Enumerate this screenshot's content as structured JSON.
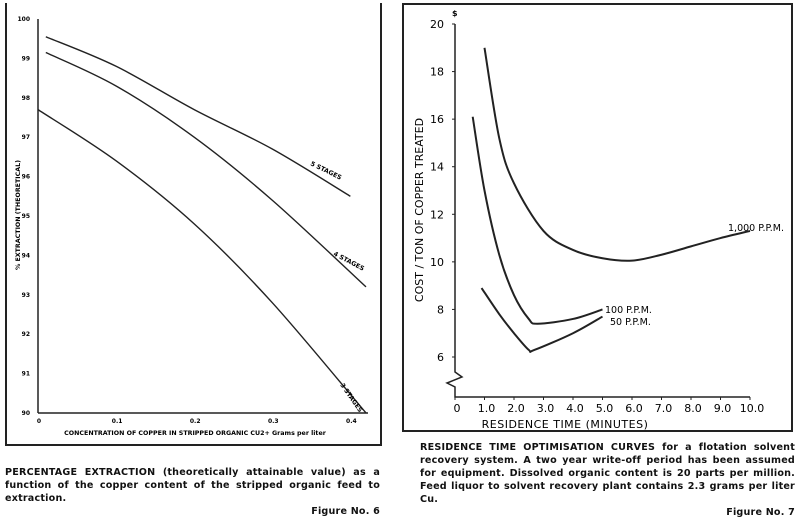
{
  "chart_data": [
    {
      "type": "line",
      "xlabel": "CONCENTRATION OF COPPER IN STRIPPED ORGANIC  CU2+ Grams per liter",
      "ylabel": "% EXTRACTION (THEORETICAL)",
      "xlim": [
        0,
        0.42
      ],
      "ylim": [
        90,
        100
      ],
      "xticks": [
        "0",
        "0.1",
        "0.2",
        "0.3",
        "0.4"
      ],
      "xtick_values": [
        0,
        0.1,
        0.2,
        0.3,
        0.4
      ],
      "yticks": [
        "90",
        "91",
        "92",
        "93",
        "94",
        "95",
        "96",
        "97",
        "98",
        "99",
        "100"
      ],
      "grid": false,
      "series": [
        {
          "name": "5 STAGES",
          "x": [
            0.01,
            0.1,
            0.2,
            0.3,
            0.4
          ],
          "y": [
            99.55,
            98.8,
            97.7,
            96.7,
            95.5
          ]
        },
        {
          "name": "4 STAGES",
          "x": [
            0.01,
            0.1,
            0.2,
            0.3,
            0.42
          ],
          "y": [
            99.15,
            98.3,
            97.0,
            95.4,
            93.2
          ]
        },
        {
          "name": "3 STAGES",
          "x": [
            0,
            0.1,
            0.2,
            0.3,
            0.42
          ],
          "y": [
            97.7,
            96.4,
            94.8,
            92.8,
            90.0
          ]
        }
      ],
      "caption_bold": "PERCENTAGE EXTRACTION",
      "caption": " (theoretically attainable value) as a function of the copper content of the stripped organic feed to extraction.",
      "figure_label": "Figure No. 6"
    },
    {
      "type": "line",
      "xlabel": "RESIDENCE TIME (MINUTES)",
      "ylabel": "COST / TON OF COPPER TREATED",
      "yunit": "$",
      "xlim": [
        0,
        10
      ],
      "ylim": [
        4,
        20
      ],
      "y_axis_break": true,
      "xticks": [
        "0",
        "1.0",
        "2.0",
        "3.0",
        "4.0",
        "5.0",
        "6.0",
        "7.0",
        "8.0",
        "9.0",
        "10.0"
      ],
      "yticks": [
        "6",
        "8",
        "10",
        "12",
        "14",
        "16",
        "18",
        "20"
      ],
      "grid": false,
      "series": [
        {
          "name": "1,000 P.P.M.",
          "x": [
            1.0,
            1.5,
            2.0,
            3.0,
            4.0,
            5.0,
            6.0,
            7.0,
            8.0,
            9.0,
            10.0
          ],
          "y": [
            19.0,
            15.2,
            13.3,
            11.3,
            10.5,
            10.15,
            10.05,
            10.3,
            10.65,
            11.0,
            11.3
          ]
        },
        {
          "name": "100 P.P.M.",
          "x": [
            0.6,
            1.0,
            1.5,
            2.0,
            2.5,
            2.8,
            4.0,
            5.0
          ],
          "y": [
            16.1,
            13.0,
            10.3,
            8.6,
            7.6,
            7.4,
            7.6,
            8.0
          ]
        },
        {
          "name": "50 P.P.M.",
          "x": [
            0.9,
            1.5,
            2.0,
            2.5,
            2.7,
            4.0,
            5.0
          ],
          "y": [
            8.9,
            7.8,
            7.0,
            6.3,
            6.3,
            7.0,
            7.7
          ]
        }
      ],
      "caption_bold": "RESIDENCE TIME OPTIMISATION CURVES",
      "caption": " for a flotation solvent recovery system. A two year write-off period has been assumed for equipment. Dissolved organic content is 20 parts per million. Feed liquor to solvent recovery plant contains 2.3 grams per liter Cu.",
      "figure_label": "Figure No. 7"
    }
  ]
}
